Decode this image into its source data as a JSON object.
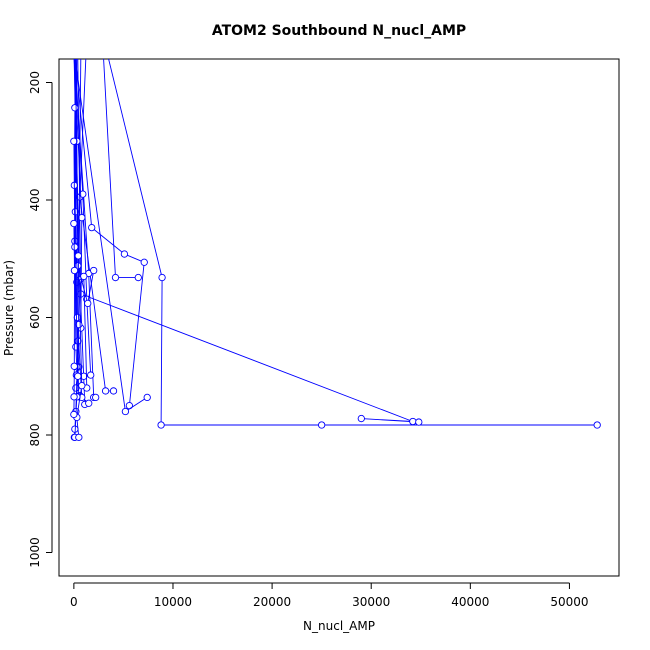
{
  "chart_data": {
    "type": "line",
    "title": "ATOM2 Southbound N_nucl_AMP",
    "xlabel": "N_nucl_AMP",
    "ylabel": "Pressure (mbar)",
    "xlim": [
      -1500,
      55000
    ],
    "ylim": [
      1040,
      160
    ],
    "y_reversed": true,
    "grid": false,
    "legend": "none",
    "marker": "open-circle",
    "color": "#0000ff",
    "x_ticks": [
      0,
      10000,
      20000,
      30000,
      40000,
      50000
    ],
    "x_tick_labels": [
      "0",
      "10000",
      "20000",
      "30000",
      "40000",
      "50000"
    ],
    "y_ticks": [
      200,
      400,
      600,
      800,
      1000
    ],
    "y_tick_labels": [
      "200",
      "400",
      "600",
      "800",
      "1000"
    ],
    "series": [
      {
        "x": [
          3500,
          8900,
          8800,
          25000,
          52800
        ],
        "y": [
          160,
          532,
          783,
          783,
          783
        ]
      },
      {
        "x": [
          3000,
          4200,
          6500
        ],
        "y": [
          160,
          532,
          532
        ]
      },
      {
        "x": [
          400,
          700,
          34200,
          29000,
          34800
        ],
        "y": [
          160,
          560,
          777,
          772,
          778
        ]
      },
      {
        "x": [
          150,
          1800,
          5100,
          7100,
          5600
        ],
        "y": [
          160,
          447,
          492,
          506,
          750
        ]
      },
      {
        "x": [
          120,
          5200,
          7400
        ],
        "y": [
          160,
          760,
          736
        ]
      },
      {
        "x": [
          1200,
          600,
          3200,
          4000
        ],
        "y": [
          160,
          395,
          725,
          725
        ]
      },
      {
        "x": [
          80,
          1500,
          2000,
          2200
        ],
        "y": [
          160,
          525,
          736,
          736
        ]
      },
      {
        "x": [
          20,
          600,
          1100,
          1500,
          600
        ],
        "y": [
          160,
          536,
          748,
          746,
          733
        ]
      },
      {
        "x": [
          50,
          900,
          1300,
          1700,
          1000
        ],
        "y": [
          160,
          390,
          569,
          698,
          700
        ]
      },
      {
        "x": [
          30,
          800,
          700,
          250
        ],
        "y": [
          160,
          430,
          618,
          698
        ]
      },
      {
        "x": [
          60,
          300,
          1000,
          1300
        ],
        "y": [
          160,
          540,
          530,
          720
        ]
      },
      {
        "x": [
          700,
          400,
          500,
          200
        ],
        "y": [
          160,
          640,
          684,
          720
        ]
      },
      {
        "x": [
          200,
          100,
          200,
          300
        ],
        "y": [
          160,
          470,
          650,
          684
        ]
      },
      {
        "x": [
          100,
          300,
          150,
          500
        ],
        "y": [
          160,
          300,
          520,
          735
        ]
      },
      {
        "x": [
          300,
          150,
          350,
          800
        ],
        "y": [
          160,
          420,
          600,
          736
        ]
      },
      {
        "x": [
          200,
          400,
          1400,
          2000
        ],
        "y": [
          160,
          512,
          576,
          520
        ]
      },
      {
        "x": [
          100,
          50,
          500,
          200,
          100,
          50
        ],
        "y": [
          243,
          375,
          612,
          760,
          790,
          804
        ]
      },
      {
        "x": [
          0,
          100,
          400,
          300,
          100
        ],
        "y": [
          300,
          480,
          700,
          735,
          804
        ]
      },
      {
        "x": [
          150,
          450,
          800,
          300,
          500
        ],
        "y": [
          160,
          495,
          716,
          770,
          804
        ]
      },
      {
        "x": [
          0,
          60,
          40,
          20,
          0
        ],
        "y": [
          440,
          520,
          683,
          735,
          765
        ]
      }
    ]
  }
}
